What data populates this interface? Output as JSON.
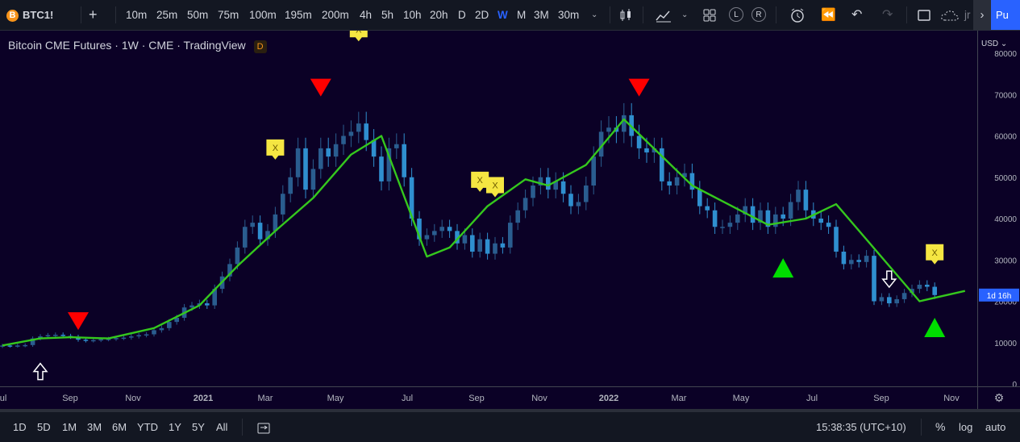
{
  "toolbar": {
    "symbol": "BTC1!",
    "symbol_icon": "B",
    "add_symbol": "+",
    "intervals": [
      "10m",
      "25m",
      "50m",
      "75m",
      "100m",
      "195m",
      "200m",
      "4h",
      "5h",
      "10h",
      "20h",
      "D",
      "2D",
      "W",
      "M",
      "3M",
      "30m"
    ],
    "active_interval": "W",
    "circle_l": "L",
    "circle_r": "R",
    "right_text": "jr",
    "publish": "Pu"
  },
  "legend": {
    "title": "Bitcoin CME Futures · 1W · CME · TradingView",
    "badge": "D"
  },
  "price_axis": {
    "currency": "USD",
    "labels": [
      "80000",
      "70000",
      "60000",
      "50000",
      "40000",
      "30000",
      "20000",
      "10000",
      "0"
    ],
    "countdown_label": "1d 16h",
    "countdown_color": "#2962ff"
  },
  "time_axis": {
    "labels": [
      "ul",
      "Sep",
      "Nov",
      "2021",
      "Mar",
      "May",
      "Jul",
      "Sep",
      "Nov",
      "2022",
      "Mar",
      "May",
      "Jul",
      "Sep",
      "Nov"
    ]
  },
  "bottom": {
    "ranges": [
      "1D",
      "5D",
      "1M",
      "3M",
      "6M",
      "YTD",
      "1Y",
      "5Y",
      "All"
    ],
    "clock": "15:38:35 (UTC+10)",
    "percent": "%",
    "log": "log",
    "auto": "auto"
  },
  "colors": {
    "background": "#0b0126",
    "candle_up": "#2a5d8f",
    "candle_down": "#2f8fcf",
    "trend_line": "#35c81d",
    "sell_marker": "#ff0000",
    "buy_marker": "#00dd00",
    "exit_marker": "#f5e642"
  },
  "chart_data": {
    "type": "candlestick",
    "title": "Bitcoin CME Futures · 1W · CME · TradingView",
    "ylim": [
      0,
      80000
    ],
    "ylabel": "USD",
    "weekly_close": [
      9300,
      9200,
      9300,
      9400,
      11000,
      11500,
      11800,
      11900,
      11600,
      11400,
      10700,
      10500,
      10600,
      10800,
      10900,
      11100,
      11200,
      11500,
      11800,
      12000,
      13000,
      13500,
      15000,
      16000,
      18500,
      19000,
      19500,
      19000,
      23000,
      26000,
      29000,
      33000,
      38000,
      39000,
      35000,
      37000,
      41000,
      46000,
      50000,
      57000,
      47000,
      52000,
      57000,
      55000,
      58000,
      60000,
      61000,
      63000,
      59000,
      55000,
      49000,
      57000,
      58000,
      50000,
      40000,
      35000,
      36000,
      37000,
      38000,
      37000,
      34000,
      36000,
      32000,
      35000,
      31500,
      34000,
      33000,
      39000,
      42000,
      45000,
      48000,
      50000,
      47000,
      49000,
      46000,
      43000,
      44000,
      48000,
      55000,
      61000,
      62000,
      61000,
      65000,
      60000,
      57000,
      56000,
      57000,
      49000,
      48000,
      50000,
      51000,
      47000,
      43000,
      42000,
      38000,
      38000,
      39000,
      41000,
      43000,
      39000,
      42000,
      38000,
      41000,
      40000,
      44000,
      47000,
      42000,
      40000,
      39000,
      38000,
      32000,
      29000,
      30000,
      29500,
      31000,
      20000,
      21000,
      19500,
      20500,
      22000,
      23000,
      24000,
      23500,
      21500
    ],
    "trend_line_points": [
      [
        0,
        9300
      ],
      [
        5,
        11000
      ],
      [
        9,
        11300
      ],
      [
        14,
        11000
      ],
      [
        20,
        13500
      ],
      [
        26,
        19000
      ],
      [
        31,
        28500
      ],
      [
        36,
        37000
      ],
      [
        41,
        45000
      ],
      [
        46,
        55500
      ],
      [
        50,
        60000
      ],
      [
        56,
        30800
      ],
      [
        59,
        33000
      ],
      [
        64,
        43000
      ],
      [
        69,
        49500
      ],
      [
        72,
        48000
      ],
      [
        77,
        53000
      ],
      [
        82,
        64000
      ],
      [
        91,
        48000
      ],
      [
        101,
        38500
      ],
      [
        106,
        40000
      ],
      [
        110,
        43500
      ],
      [
        121,
        20000
      ],
      [
        127,
        22500
      ]
    ],
    "markers": [
      {
        "type": "sell",
        "week": 10
      },
      {
        "type": "buy_arrow",
        "week": 5
      },
      {
        "type": "exit",
        "week": 47
      },
      {
        "type": "sell",
        "week": 42
      },
      {
        "type": "exit",
        "week": 36
      },
      {
        "type": "exit",
        "week": 63
      },
      {
        "type": "exit",
        "week": 65
      },
      {
        "type": "sell",
        "week": 84
      },
      {
        "type": "buy",
        "week": 103
      },
      {
        "type": "sell_arrow",
        "week": 117
      },
      {
        "type": "buy",
        "week": 129
      },
      {
        "type": "exit",
        "week": 134
      }
    ]
  }
}
